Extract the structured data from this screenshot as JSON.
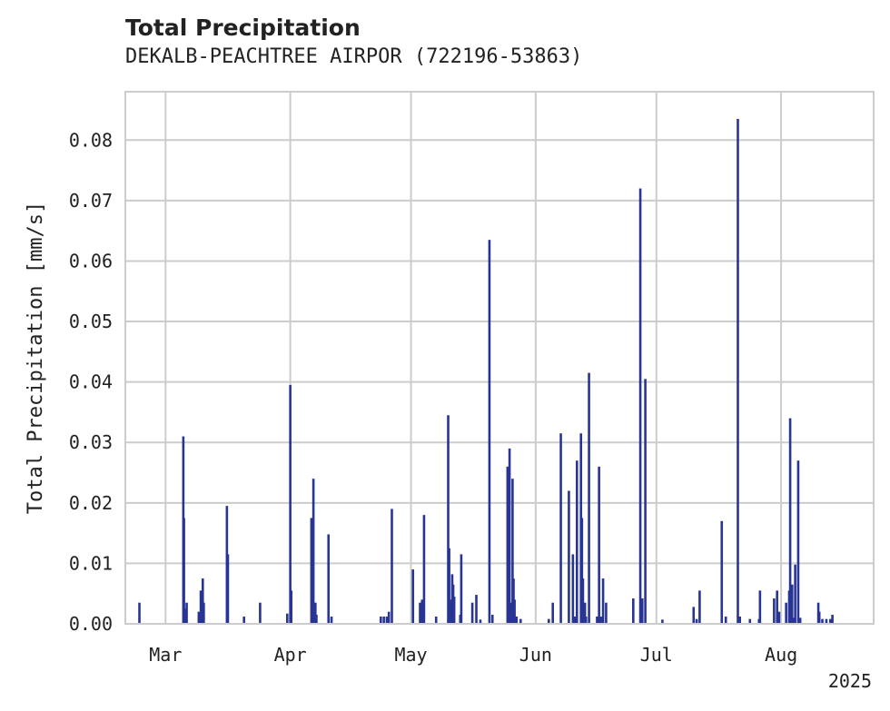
{
  "chart_data": {
    "type": "bar",
    "title": "Total Precipitation",
    "subtitle": "DEKALB-PEACHTREE AIRPOR (722196-53863)",
    "ylabel": "Total Precipitation [mm/s]",
    "xlabel": "",
    "year_label": "2025",
    "xlim": [
      "2025-02-19",
      "2025-08-24"
    ],
    "ylim": [
      0,
      0.088
    ],
    "yticks": [
      0.0,
      0.01,
      0.02,
      0.03,
      0.04,
      0.05,
      0.06,
      0.07,
      0.08
    ],
    "ytick_labels": [
      "0.00",
      "0.01",
      "0.02",
      "0.03",
      "0.04",
      "0.05",
      "0.06",
      "0.07",
      "0.08"
    ],
    "xticks": [
      "2025-03-01",
      "2025-04-01",
      "2025-05-01",
      "2025-06-01",
      "2025-07-01",
      "2025-08-01"
    ],
    "xtick_labels": [
      "Mar",
      "Apr",
      "May",
      "Jun",
      "Jul",
      "Aug"
    ],
    "grid": true,
    "bar_color": "#283593",
    "series": [
      {
        "x": [
          "2025-02-22T12:00",
          "2025-03-05T10:00",
          "2025-03-05T14:00",
          "2025-03-05T18:00",
          "2025-03-06T06:00",
          "2025-03-09T06:00",
          "2025-03-09T18:00",
          "2025-03-10T06:00",
          "2025-03-10T12:00",
          "2025-03-16T06:00",
          "2025-03-16T12:00",
          "2025-03-20T12:00",
          "2025-03-24T12:00",
          "2025-03-31T06:00",
          "2025-04-01T00:00",
          "2025-04-01T06:00",
          "2025-04-06T06:00",
          "2025-04-06T18:00",
          "2025-04-07T06:00",
          "2025-04-07T12:00",
          "2025-04-10T12:00",
          "2025-04-11T06:00",
          "2025-04-23T12:00",
          "2025-04-24T06:00",
          "2025-04-25T00:00",
          "2025-04-25T12:00",
          "2025-04-26T06:00",
          "2025-05-01T12:00",
          "2025-05-03T06:00",
          "2025-05-03T18:00",
          "2025-05-04T06:00",
          "2025-05-07T06:00",
          "2025-05-10T06:00",
          "2025-05-10T12:00",
          "2025-05-11T00:00",
          "2025-05-11T06:00",
          "2025-05-11T12:00",
          "2025-05-11T18:00",
          "2025-05-13T06:00",
          "2025-05-13T12:00",
          "2025-05-16T06:00",
          "2025-05-17T06:00",
          "2025-05-18T06:00",
          "2025-05-20T12:00",
          "2025-05-21T06:00",
          "2025-05-25T00:00",
          "2025-05-25T12:00",
          "2025-05-26T00:00",
          "2025-05-26T06:00",
          "2025-05-26T12:00",
          "2025-05-26T18:00",
          "2025-05-27T06:00",
          "2025-05-28T06:00",
          "2025-06-04T06:00",
          "2025-06-05T06:00",
          "2025-06-07T06:00",
          "2025-06-09T06:00",
          "2025-06-10T06:00",
          "2025-06-10T18:00",
          "2025-06-11T06:00",
          "2025-06-12T06:00",
          "2025-06-12T12:00",
          "2025-06-12T18:00",
          "2025-06-13T06:00",
          "2025-06-13T12:00",
          "2025-06-14T06:00",
          "2025-06-16T06:00",
          "2025-06-16T18:00",
          "2025-06-17T06:00",
          "2025-06-17T18:00",
          "2025-06-18T12:00",
          "2025-06-25T06:00",
          "2025-06-27T00:00",
          "2025-06-27T12:00",
          "2025-06-28T06:00",
          "2025-07-02T12:00",
          "2025-07-10T06:00",
          "2025-07-11T00:00",
          "2025-07-11T18:00",
          "2025-07-17T06:00",
          "2025-07-18T06:00",
          "2025-07-21T06:00",
          "2025-07-21T18:00",
          "2025-07-24T06:00",
          "2025-07-26T12:00",
          "2025-07-26T18:00",
          "2025-07-30T06:00",
          "2025-07-31T00:00",
          "2025-07-31T12:00",
          "2025-08-02T06:00",
          "2025-08-03T00:00",
          "2025-08-03T06:00",
          "2025-08-03T18:00",
          "2025-08-04T06:00",
          "2025-08-04T12:00",
          "2025-08-05T06:00",
          "2025-08-05T18:00",
          "2025-08-10T06:00",
          "2025-08-10T12:00",
          "2025-08-11T06:00",
          "2025-08-12T06:00",
          "2025-08-13T06:00",
          "2025-08-13T18:00"
        ],
        "values": [
          0.0035,
          0.031,
          0.0175,
          0.0025,
          0.0035,
          0.002,
          0.0055,
          0.0075,
          0.0035,
          0.0195,
          0.0115,
          0.0012,
          0.0035,
          0.0017,
          0.0395,
          0.0055,
          0.0175,
          0.024,
          0.0035,
          0.0015,
          0.0148,
          0.0012,
          0.0012,
          0.0012,
          0.0012,
          0.002,
          0.019,
          0.009,
          0.0035,
          0.004,
          0.018,
          0.0012,
          0.0345,
          0.0125,
          0.004,
          0.0082,
          0.0065,
          0.0045,
          0.0015,
          0.0115,
          0.0035,
          0.0048,
          0.0007,
          0.0635,
          0.0015,
          0.026,
          0.029,
          0.0035,
          0.024,
          0.0075,
          0.004,
          0.0012,
          0.0008,
          0.0008,
          0.0035,
          0.0315,
          0.022,
          0.0115,
          0.0012,
          0.027,
          0.0315,
          0.0175,
          0.0075,
          0.0035,
          0.0012,
          0.0415,
          0.0012,
          0.026,
          0.0012,
          0.0075,
          0.0035,
          0.0042,
          0.072,
          0.0042,
          0.0405,
          0.0007,
          0.0028,
          0.0008,
          0.0055,
          0.017,
          0.0012,
          0.0835,
          0.0012,
          0.0008,
          0.0008,
          0.0055,
          0.0042,
          0.0055,
          0.002,
          0.0035,
          0.0055,
          0.034,
          0.0065,
          0.001,
          0.0098,
          0.027,
          0.001,
          0.0035,
          0.002,
          0.0008,
          0.0008,
          0.0008,
          0.0015
        ]
      }
    ]
  }
}
